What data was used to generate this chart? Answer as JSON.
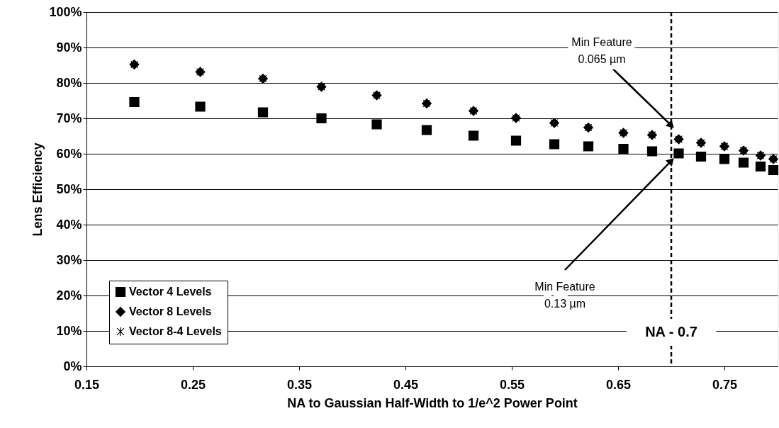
{
  "chart_data": {
    "type": "scatter",
    "xlabel": "NA to Gaussian Half-Width to 1/e^2 Power Point",
    "ylabel": "Lens Efficiency",
    "x": [
      0.195,
      0.257,
      0.316,
      0.371,
      0.423,
      0.47,
      0.514,
      0.554,
      0.59,
      0.622,
      0.655,
      0.682,
      0.707,
      0.728,
      0.75,
      0.768,
      0.784,
      0.796
    ],
    "series": [
      {
        "name": "Vector 4 Levels",
        "color": "#000000",
        "marker": "square",
        "values": [
          74.6,
          73.3,
          71.7,
          70.0,
          68.3,
          66.7,
          65.1,
          63.7,
          62.7,
          62.1,
          61.4,
          60.7,
          60.1,
          59.2,
          58.5,
          57.5,
          56.4,
          55.4
        ]
      },
      {
        "name": "Vector 8 Levels",
        "color": "#000000",
        "marker": "diamond",
        "values": [
          85.2,
          83.1,
          81.2,
          78.9,
          76.5,
          74.2,
          72.1,
          70.1,
          68.7,
          67.4,
          65.9,
          65.3,
          64.1,
          63.1,
          62.1,
          60.9,
          59.5,
          58.5
        ]
      },
      {
        "name": "Vector 8-4 Levels",
        "color": "#000000",
        "marker": "cross",
        "values": [
          85.2,
          83.1,
          81.2,
          78.9,
          76.5,
          74.2,
          72.1,
          70.1,
          68.7,
          67.4,
          65.9,
          65.3,
          64.1,
          63.1,
          62.1,
          60.9,
          59.5,
          58.5
        ]
      }
    ],
    "xlim": [
      0.15,
      0.8
    ],
    "xticks": [
      0.15,
      0.25,
      0.35,
      0.45,
      0.55,
      0.65,
      0.75
    ],
    "ylim": [
      0,
      100
    ],
    "yticks": [
      {
        "value": 0,
        "label": "0%"
      },
      {
        "value": 10,
        "label": "10%"
      },
      {
        "value": 20,
        "label": "20%"
      },
      {
        "value": 30,
        "label": "30%"
      },
      {
        "value": 40,
        "label": "40%"
      },
      {
        "value": 50,
        "label": "50%"
      },
      {
        "value": 60,
        "label": "60%"
      },
      {
        "value": 70,
        "label": "70%"
      },
      {
        "value": 80,
        "label": "80%"
      },
      {
        "value": 90,
        "label": "90%"
      },
      {
        "value": 100,
        "label": "100%"
      }
    ],
    "ref_lines": [
      {
        "axis": "x",
        "value": 0.7,
        "label": "NA - 0.7",
        "color": "#000000",
        "line_style": "dashed"
      }
    ],
    "annotations": [
      {
        "text": "Min Feature\n0.065 µm",
        "x": 0.7,
        "y": 68
      },
      {
        "text": "Min Feature\n0.13 µm",
        "x": 0.7,
        "y": 58
      }
    ],
    "grid": "y",
    "legend": "bottom left"
  }
}
